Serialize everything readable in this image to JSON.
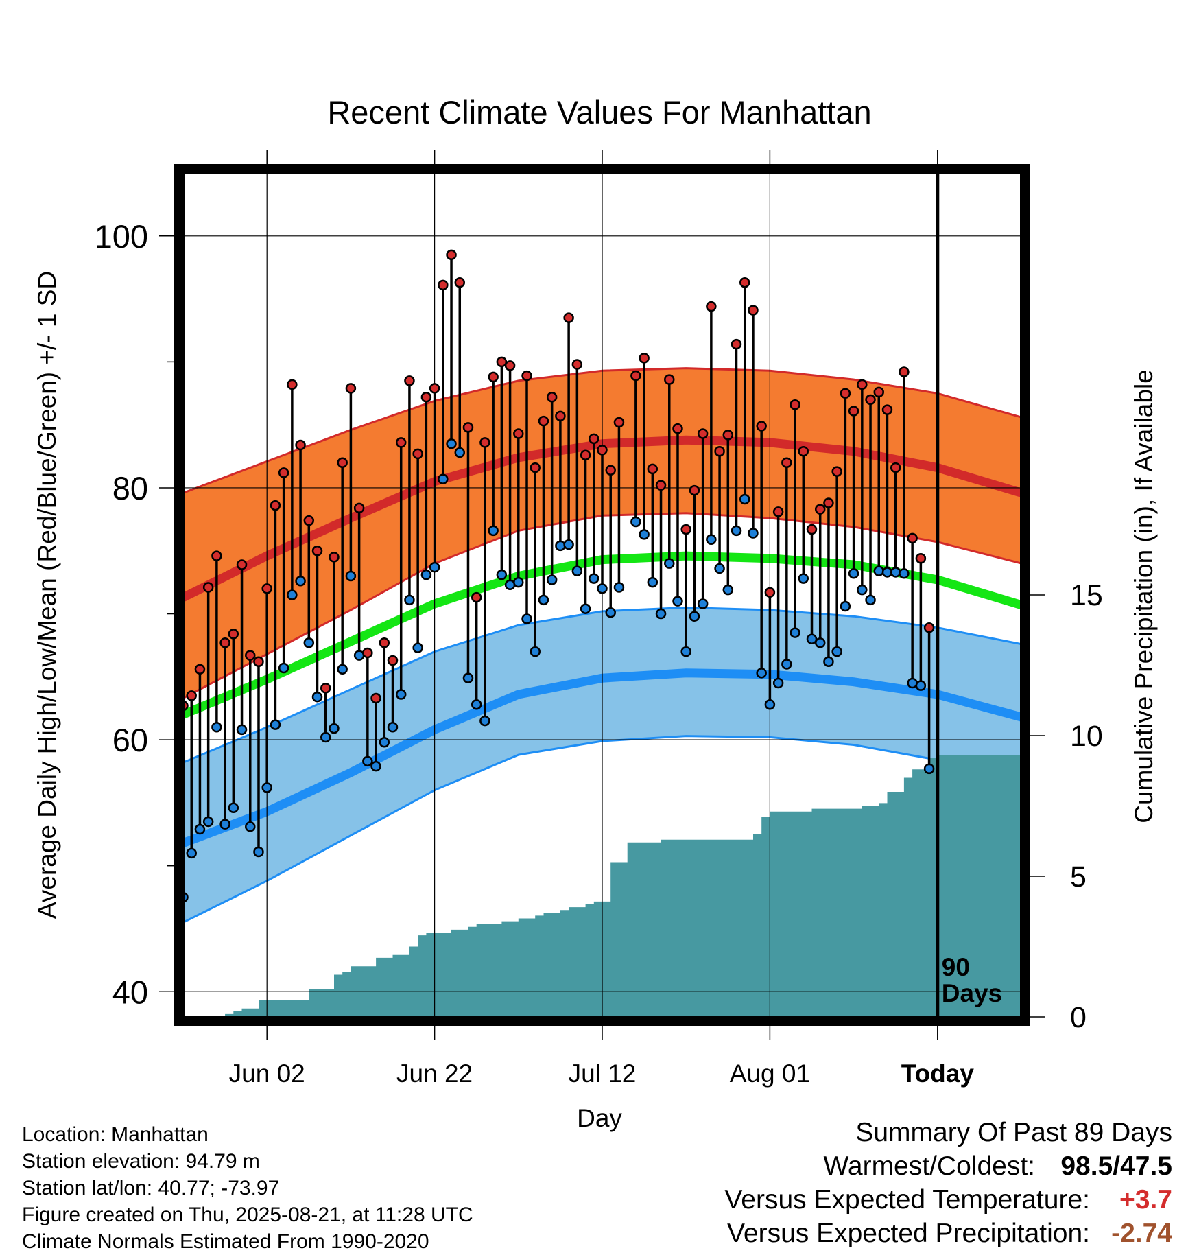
{
  "chart_data": {
    "type": "line",
    "title": "Recent Climate Values For Manhattan",
    "xlabel": "Day",
    "ylabel": "Average Daily High/Low/Mean (Red/Blue/Green) +/- 1 SD",
    "y2label": "Cumulative Precipitation (in), If Available",
    "ylim": [
      38,
      105
    ],
    "y2lim": [
      0,
      30
    ],
    "xlim": [
      0,
      100
    ],
    "x_ticks": [
      {
        "day": 10,
        "label": "Jun 02"
      },
      {
        "day": 30,
        "label": "Jun 22"
      },
      {
        "day": 50,
        "label": "Jul 12"
      },
      {
        "day": 70,
        "label": "Aug 01"
      },
      {
        "day": 90,
        "label": "Today"
      }
    ],
    "y_ticks": [
      40,
      60,
      80,
      100
    ],
    "y2_ticks": [
      0,
      5,
      10,
      15
    ],
    "today_label": [
      "90",
      "Days"
    ],
    "colors": {
      "high_band": "#f47b30",
      "high_line": "#d22a2a",
      "low_band": "#86c2e8",
      "low_line": "#1e8ef5",
      "mean_line": "#14e614",
      "precip": "#4799a1",
      "high_point": "#d42d2d",
      "low_point": "#1e80d8"
    },
    "normals": {
      "day": [
        0,
        10,
        20,
        30,
        40,
        50,
        60,
        70,
        80,
        90,
        100
      ],
      "high_mean": [
        71.3,
        74.6,
        77.6,
        80.5,
        82.4,
        83.5,
        83.8,
        83.6,
        82.9,
        81.6,
        79.6
      ],
      "high_upper": [
        79.6,
        82.1,
        84.6,
        86.9,
        88.5,
        89.3,
        89.5,
        89.3,
        88.6,
        87.5,
        85.6
      ],
      "high_lower": [
        63.3,
        66.8,
        70.3,
        74.0,
        76.6,
        77.8,
        78.0,
        77.6,
        76.9,
        75.7,
        74.0
      ],
      "mean": [
        62.0,
        64.8,
        67.8,
        70.8,
        73.0,
        74.3,
        74.6,
        74.4,
        73.9,
        72.7,
        70.7
      ],
      "low_mean": [
        51.8,
        54.3,
        57.4,
        60.8,
        63.6,
        64.9,
        65.3,
        65.2,
        64.6,
        63.6,
        61.8
      ],
      "low_upper": [
        58.2,
        61.0,
        64.0,
        67.0,
        69.1,
        70.2,
        70.5,
        70.3,
        69.8,
        68.9,
        67.6
      ],
      "low_lower": [
        45.5,
        48.8,
        52.4,
        56.0,
        58.8,
        59.9,
        60.3,
        60.2,
        59.6,
        58.4,
        56.2
      ]
    },
    "highs": [
      62.7,
      63.5,
      65.6,
      72.1,
      74.6,
      67.7,
      68.4,
      73.9,
      66.7,
      66.2,
      72.0,
      78.6,
      81.2,
      88.2,
      83.4,
      77.4,
      75.0,
      64.1,
      74.5,
      82.0,
      87.9,
      78.4,
      66.9,
      63.3,
      67.7,
      66.3,
      83.6,
      88.5,
      82.7,
      87.2,
      87.9,
      96.1,
      98.5,
      96.3,
      84.8,
      71.3,
      83.6,
      88.8,
      90.0,
      89.7,
      84.3,
      88.9,
      81.6,
      85.3,
      87.2,
      85.7,
      93.5,
      89.8,
      82.6,
      83.9,
      83.0,
      81.4,
      85.2,
      null,
      88.9,
      90.3,
      81.5,
      80.2,
      88.6,
      84.7,
      76.7,
      79.8,
      84.3,
      94.4,
      82.9,
      84.2,
      91.4,
      96.3,
      94.1,
      84.9,
      71.7,
      78.1,
      82.0,
      86.6,
      82.9,
      76.7,
      78.3,
      78.8,
      81.3,
      87.5,
      86.1,
      88.2,
      87.0,
      87.6,
      86.2,
      81.6,
      89.2,
      76.0,
      74.4,
      68.9
    ],
    "lows": [
      47.5,
      51.0,
      52.9,
      53.5,
      61.0,
      53.3,
      54.6,
      60.8,
      53.1,
      51.1,
      56.2,
      61.2,
      65.7,
      71.5,
      72.6,
      67.7,
      63.4,
      60.2,
      60.9,
      65.6,
      73.0,
      66.7,
      58.3,
      57.9,
      59.8,
      61.0,
      63.6,
      71.1,
      67.3,
      73.1,
      73.7,
      80.7,
      83.5,
      82.8,
      64.9,
      62.8,
      61.5,
      76.6,
      73.1,
      72.3,
      72.5,
      69.6,
      67.0,
      71.1,
      72.7,
      75.4,
      75.5,
      73.4,
      70.4,
      72.8,
      72.0,
      70.1,
      72.1,
      null,
      77.3,
      76.3,
      72.5,
      70.0,
      74.0,
      71.0,
      67.0,
      69.8,
      70.8,
      75.9,
      73.6,
      71.9,
      76.6,
      79.1,
      76.4,
      65.3,
      62.8,
      64.5,
      66.0,
      68.5,
      72.8,
      68.0,
      67.7,
      66.2,
      67.0,
      70.6,
      73.2,
      71.9,
      71.1,
      73.4,
      73.3,
      73.3,
      73.2,
      64.5,
      64.3,
      57.7
    ],
    "precip_cum": [
      0,
      0,
      0,
      0,
      0,
      0.1,
      0.2,
      0.3,
      0.3,
      0.6,
      0.6,
      0.6,
      0.6,
      0.6,
      0.6,
      1.0,
      1.0,
      1.0,
      1.5,
      1.6,
      1.8,
      1.8,
      1.8,
      2.1,
      2.1,
      2.2,
      2.2,
      2.5,
      2.9,
      3.0,
      3.0,
      3.0,
      3.1,
      3.1,
      3.2,
      3.3,
      3.3,
      3.3,
      3.4,
      3.4,
      3.5,
      3.5,
      3.6,
      3.7,
      3.7,
      3.8,
      3.9,
      3.9,
      4.0,
      4.1,
      4.1,
      5.5,
      5.5,
      6.2,
      6.2,
      6.2,
      6.2,
      6.3,
      6.3,
      6.3,
      6.3,
      6.3,
      6.3,
      6.3,
      6.3,
      6.3,
      6.3,
      6.3,
      6.5,
      7.1,
      7.3,
      7.3,
      7.3,
      7.3,
      7.3,
      7.4,
      7.4,
      7.4,
      7.4,
      7.4,
      7.4,
      7.5,
      7.5,
      7.6,
      8.0,
      8.0,
      8.5,
      8.8,
      8.8,
      9.2,
      9.3,
      9.3,
      9.3,
      9.3,
      9.3,
      9.3,
      9.3,
      9.3,
      9.3,
      9.3,
      9.3,
      9.3,
      9.3
    ]
  },
  "meta": {
    "location": "Location: Manhattan",
    "elevation": "Station elevation: 94.79 m",
    "latlon": "Station lat/lon: 40.77; -73.97",
    "created": "Figure created on Thu, 2025-08-21, at 11:28 UTC",
    "normals": "Climate Normals Estimated From 1990-2020"
  },
  "summary": {
    "title": "Summary Of Past 89 Days",
    "warm_cold_label": "Warmest/Coldest:",
    "warmest": "98.5",
    "slash": "/",
    "coldest": "47.5",
    "temp_label": "Versus Expected Temperature:",
    "temp_value": "+3.7",
    "precip_label": "Versus Expected Precipitation:",
    "precip_value": "-2.74"
  }
}
